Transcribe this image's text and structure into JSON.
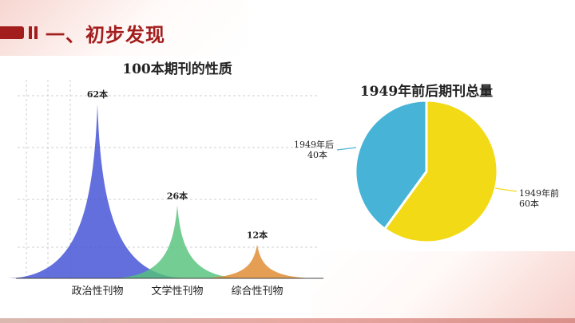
{
  "header": {
    "title": "一、初步发现"
  },
  "chart_data": [
    {
      "type": "area",
      "title": "100本期刊的性质",
      "categories": [
        "政治性刊物",
        "文学性刊物",
        "综合性刊物"
      ],
      "values": [
        62,
        26,
        12
      ],
      "data_labels": [
        "62本",
        "26本",
        "12本"
      ],
      "ylim": [
        0,
        70
      ],
      "colors": [
        "#3f4fd6",
        "#56c27a",
        "#df8a2e"
      ],
      "grid": true
    },
    {
      "type": "pie",
      "title": "1949年前后期刊总量",
      "slices": [
        {
          "value": 60,
          "label_line1": "1949年前",
          "label_line2": "60本",
          "color": "#f3da16"
        },
        {
          "value": 40,
          "label_line1": "1949年后",
          "label_line2": "40本",
          "color": "#47b3d6"
        }
      ]
    }
  ]
}
